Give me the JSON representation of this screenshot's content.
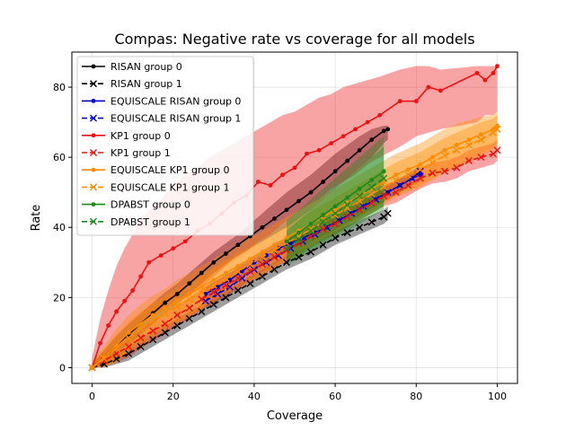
{
  "chart_data": {
    "type": "line",
    "title": "Compas: Negative rate vs coverage for all models",
    "xlabel": "Coverage",
    "ylabel": "Rate",
    "xlim": [
      -5,
      105
    ],
    "ylim": [
      -4.5,
      90
    ],
    "xticks": [
      0,
      20,
      40,
      60,
      80,
      100
    ],
    "yticks": [
      0,
      20,
      40,
      60,
      80
    ],
    "grid": true,
    "legend_position": "top-left",
    "series": [
      {
        "name": "RISAN group 0",
        "color": "#000000",
        "dashed": false,
        "marker": "dot",
        "x": [
          0,
          3,
          6,
          9,
          12,
          15,
          18,
          21,
          24,
          27,
          30,
          33,
          36,
          39,
          42,
          45,
          48,
          51,
          54,
          57,
          60,
          63,
          66,
          69,
          72,
          73
        ],
        "y": [
          0,
          3,
          6.5,
          9.5,
          12.5,
          15.5,
          18.5,
          21,
          24,
          27,
          30,
          32.5,
          35,
          37.5,
          40,
          42.5,
          45,
          47.5,
          50,
          53,
          56,
          59,
          62,
          65,
          67.5,
          68
        ],
        "band_upper": [
          1,
          5,
          9,
          12.5,
          15.5,
          18.5,
          21.5,
          24,
          27,
          30,
          33,
          35.5,
          38,
          41,
          44,
          47,
          50,
          52.5,
          55,
          58,
          61,
          63.5,
          66,
          68,
          69,
          69
        ],
        "band_lower": [
          0,
          1.5,
          4,
          6.5,
          9.5,
          12.5,
          15.5,
          18,
          21,
          24,
          27,
          29.5,
          32,
          34,
          36,
          38,
          40,
          42.5,
          45,
          48,
          51,
          54,
          57,
          60,
          64,
          65
        ]
      },
      {
        "name": "RISAN group 1",
        "color": "#000000",
        "dashed": true,
        "marker": "x",
        "x": [
          0,
          3,
          6,
          9,
          12,
          15,
          18,
          21,
          24,
          27,
          30,
          33,
          36,
          39,
          42,
          45,
          48,
          51,
          54,
          57,
          60,
          63,
          66,
          69,
          72,
          73
        ],
        "y": [
          0,
          1,
          2.5,
          4,
          6,
          8,
          10,
          12,
          14,
          16,
          18,
          20,
          22,
          24,
          26,
          28,
          30,
          31.5,
          33,
          35,
          37,
          38.5,
          40,
          41.5,
          43,
          44
        ],
        "band_upper": [
          1,
          2.5,
          4.5,
          6,
          8,
          10,
          12,
          14,
          16,
          18,
          20,
          22,
          24,
          26,
          28,
          30,
          32,
          33.5,
          35,
          37,
          39,
          40.5,
          42,
          43.5,
          45,
          46
        ],
        "band_lower": [
          0,
          0,
          1,
          2,
          4,
          6,
          8,
          10,
          12,
          14,
          16,
          18,
          20,
          22,
          24,
          26,
          28,
          29.5,
          31,
          33,
          35,
          36.5,
          38,
          39.5,
          41,
          42
        ]
      },
      {
        "name": "EQUISCALE RISAN group 0",
        "color": "#0000cc",
        "dashed": false,
        "marker": "dot",
        "x": [
          28,
          31,
          34,
          37,
          40,
          43,
          46,
          49,
          52,
          55,
          58,
          61,
          64,
          67,
          70,
          73,
          76,
          79,
          81
        ],
        "y": [
          21,
          23,
          25,
          27.5,
          30,
          32,
          34,
          35.5,
          37,
          38.5,
          40,
          42,
          44,
          46,
          48,
          50,
          52,
          54,
          55
        ],
        "band_upper": [
          23,
          25,
          27,
          29.5,
          32,
          34,
          36,
          37.5,
          39,
          40.5,
          42,
          44,
          46,
          48,
          50,
          52,
          54,
          56,
          57
        ],
        "band_lower": [
          19,
          21,
          23,
          25.5,
          28,
          30,
          32,
          33.5,
          35,
          36.5,
          38,
          40,
          42,
          44,
          46,
          48,
          50,
          52,
          53
        ]
      },
      {
        "name": "EQUISCALE RISAN group 1",
        "color": "#0000cc",
        "dashed": true,
        "marker": "x",
        "x": [
          28,
          31,
          34,
          37,
          40,
          43,
          46,
          49,
          52,
          55,
          58,
          61,
          64,
          67,
          70,
          73,
          76,
          79,
          81
        ],
        "y": [
          19,
          21,
          23,
          25.5,
          28,
          30,
          32,
          34,
          36,
          38,
          40,
          42,
          44,
          46,
          48,
          50,
          52,
          54,
          56
        ],
        "band_upper": [
          21,
          23,
          25,
          27.5,
          30,
          32,
          34,
          36,
          38,
          40,
          42,
          44,
          46,
          48,
          50,
          52,
          54,
          56,
          58
        ],
        "band_lower": [
          17,
          19,
          21,
          23.5,
          26,
          28,
          30,
          32,
          34,
          36,
          38,
          40,
          42,
          44,
          46,
          48,
          50,
          52,
          54
        ]
      },
      {
        "name": "KP1 group 0",
        "color": "#ee1111",
        "dashed": false,
        "marker": "dot",
        "x": [
          0,
          2,
          4,
          6,
          8,
          10,
          12,
          14,
          17,
          20,
          23,
          26,
          29,
          32,
          35,
          38,
          41,
          44,
          47,
          50,
          53,
          56,
          59,
          62,
          65,
          68,
          71,
          76,
          80,
          83,
          86,
          95,
          97,
          99,
          100
        ],
        "y": [
          0,
          7,
          12,
          16,
          19,
          22,
          26,
          30,
          32,
          34,
          36,
          39,
          41,
          44,
          47,
          49,
          53,
          52,
          55,
          57,
          61,
          62,
          64,
          66,
          68,
          70,
          72,
          76,
          76,
          80,
          79,
          84,
          82,
          84,
          86
        ],
        "band_upper": [
          3,
          14,
          22,
          29,
          34,
          38,
          42,
          45,
          48,
          52,
          55,
          57,
          60,
          62,
          64,
          66,
          68,
          70,
          72,
          73,
          75,
          77,
          78,
          80,
          81,
          82,
          83,
          85,
          86,
          86,
          85,
          86,
          86,
          86,
          86
        ],
        "band_lower": [
          0,
          2,
          4,
          6,
          8,
          10,
          12,
          14,
          16,
          18,
          20,
          22,
          25,
          28,
          31,
          33,
          36,
          38,
          41,
          44,
          46,
          48,
          51,
          53,
          55,
          58,
          60,
          63,
          66,
          67,
          68,
          70,
          72,
          72,
          73
        ]
      },
      {
        "name": "KP1 group 1",
        "color": "#ee1111",
        "dashed": true,
        "marker": "x",
        "x": [
          0,
          3,
          6,
          9,
          12,
          15,
          18,
          21,
          24,
          27,
          30,
          33,
          36,
          39,
          42,
          45,
          48,
          51,
          54,
          57,
          60,
          63,
          66,
          69,
          72,
          75,
          78,
          81,
          84,
          87,
          90,
          93,
          96,
          99,
          100
        ],
        "y": [
          0,
          2,
          4,
          6,
          8.5,
          10.5,
          12.5,
          15,
          17,
          19.5,
          21.5,
          23.5,
          25.5,
          27.5,
          29.5,
          31.5,
          33.5,
          35.5,
          37.5,
          39.5,
          41,
          43,
          45,
          47,
          49,
          50,
          52,
          54,
          55.5,
          56,
          57,
          59,
          60,
          61,
          62
        ],
        "band_upper": [
          1.5,
          4,
          6.5,
          9,
          11.5,
          13.5,
          15.5,
          18,
          20,
          22.5,
          24.5,
          26.5,
          28.5,
          30.5,
          32.5,
          34.5,
          36.5,
          38.5,
          40.5,
          42.5,
          44,
          46,
          48,
          50,
          52,
          53,
          55,
          57,
          58.5,
          59,
          60,
          62,
          63,
          64,
          65
        ],
        "band_lower": [
          0,
          0.5,
          1.5,
          3,
          5.5,
          7.5,
          9.5,
          12,
          14,
          16.5,
          18.5,
          20.5,
          22.5,
          24.5,
          26.5,
          28.5,
          30.5,
          32.5,
          34.5,
          36.5,
          38,
          40,
          42,
          44,
          46,
          47,
          49,
          51,
          52.5,
          53,
          54,
          56,
          57,
          58,
          59
        ]
      },
      {
        "name": "EQUISCALE KP1 group 0",
        "color": "#ff8c00",
        "dashed": false,
        "marker": "dot",
        "x": [
          0,
          3,
          6,
          9,
          12,
          15,
          18,
          21,
          24,
          27,
          30,
          33,
          36,
          39,
          42,
          45,
          48,
          51,
          54,
          57,
          60,
          63,
          66,
          69,
          72,
          75,
          78,
          81,
          84,
          87,
          90,
          93,
          96,
          99,
          100
        ],
        "y": [
          0,
          3,
          6.5,
          10,
          12.5,
          15,
          17,
          19,
          21,
          23,
          25,
          27,
          29,
          31,
          33,
          35,
          37,
          39,
          41,
          43,
          45,
          47,
          49,
          51,
          53,
          55,
          56.5,
          58,
          60,
          62,
          63.5,
          65,
          66.5,
          68,
          69
        ],
        "band_upper": [
          2,
          6,
          11,
          15,
          18,
          20.5,
          22.5,
          25,
          27,
          29,
          31,
          33,
          35,
          37,
          39,
          41,
          43,
          45,
          47,
          49,
          51,
          53,
          55,
          57,
          59,
          61,
          62.5,
          64,
          66,
          68,
          69.5,
          70.5,
          71.5,
          72,
          73
        ],
        "band_lower": [
          0,
          0.5,
          2,
          5,
          7,
          9.5,
          11.5,
          13,
          15,
          17,
          19,
          21,
          23,
          25,
          27,
          29,
          31,
          33,
          35,
          37,
          39,
          41,
          43,
          45,
          47,
          49,
          50.5,
          52,
          54,
          56,
          57.5,
          59,
          61,
          63,
          64
        ]
      },
      {
        "name": "EQUISCALE KP1 group 1",
        "color": "#ff8c00",
        "dashed": true,
        "marker": "x",
        "x": [
          0,
          3,
          6,
          9,
          12,
          15,
          18,
          21,
          24,
          27,
          30,
          33,
          36,
          39,
          42,
          45,
          48,
          51,
          54,
          57,
          60,
          63,
          66,
          69,
          72,
          75,
          78,
          81,
          84,
          87,
          90,
          93,
          96,
          99,
          100
        ],
        "y": [
          0,
          2.5,
          5.5,
          8.5,
          11,
          13.5,
          15.5,
          17.5,
          19.5,
          21.5,
          23.5,
          25.5,
          27.5,
          29.5,
          31.5,
          33.5,
          35.5,
          37.5,
          39.5,
          41.5,
          43.5,
          45.5,
          47.5,
          49.5,
          51.5,
          53.5,
          55,
          56.5,
          58.5,
          60.5,
          62,
          63.5,
          65,
          67,
          68
        ],
        "band_upper": [
          2,
          5.5,
          9.5,
          13,
          16,
          18.5,
          20.5,
          22.5,
          24.5,
          26.5,
          28.5,
          30.5,
          32.5,
          34.5,
          36.5,
          38.5,
          40.5,
          42.5,
          44.5,
          46.5,
          48.5,
          50.5,
          52.5,
          54.5,
          56.5,
          58.5,
          60,
          61.5,
          63.5,
          65.5,
          67,
          68.5,
          70,
          71,
          72
        ],
        "band_lower": [
          0,
          0,
          1.5,
          4,
          6,
          8.5,
          10.5,
          12.5,
          14.5,
          16.5,
          18.5,
          20.5,
          22.5,
          24.5,
          26.5,
          28.5,
          30.5,
          32.5,
          34.5,
          36.5,
          38.5,
          40.5,
          42.5,
          44.5,
          46.5,
          48.5,
          50,
          51.5,
          53.5,
          55.5,
          57,
          58.5,
          60,
          62,
          63
        ]
      },
      {
        "name": "DPABST group 0",
        "color": "#1a8a1a",
        "dashed": false,
        "marker": "dot",
        "x": [
          48,
          51,
          54,
          57,
          60,
          63,
          66,
          69,
          72
        ],
        "y": [
          36,
          38.5,
          41,
          43.5,
          46,
          48.5,
          51,
          53.5,
          56
        ],
        "band_upper": [
          42,
          45,
          48,
          51,
          54,
          57,
          60,
          63,
          66
        ],
        "band_lower": [
          30,
          32,
          34,
          36,
          38,
          40,
          42,
          44,
          46
        ]
      },
      {
        "name": "DPABST group 1",
        "color": "#1a8a1a",
        "dashed": true,
        "marker": "x",
        "x": [
          48,
          51,
          54,
          57,
          60,
          63,
          66,
          69,
          72
        ],
        "y": [
          34,
          36.5,
          39,
          41.5,
          44,
          46.5,
          49,
          51.5,
          54
        ],
        "band_upper": [
          39,
          42,
          45,
          48,
          51,
          54,
          57,
          60,
          63
        ],
        "band_lower": [
          29,
          31,
          33,
          35,
          37,
          39,
          41,
          43,
          45
        ]
      }
    ]
  }
}
